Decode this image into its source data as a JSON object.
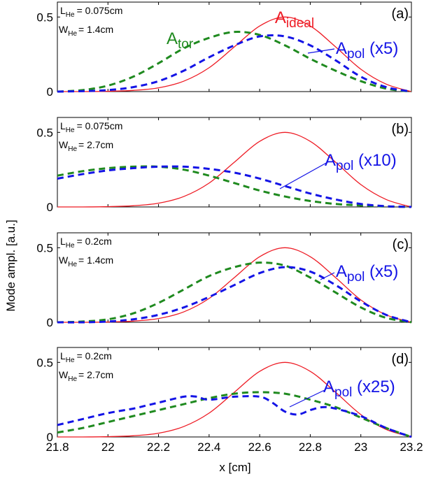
{
  "chart_data": {
    "type": "line",
    "xlabel": "x [cm]",
    "ylabel": "Mode ampl. [a.u.]",
    "xlim": [
      21.8,
      23.2
    ],
    "ylim": [
      0,
      0.6
    ],
    "x_ticks": [
      "21.8",
      "22",
      "22.2",
      "22.4",
      "22.6",
      "22.8",
      "23",
      "23.2"
    ],
    "y_ticks": [
      "0",
      "0.5"
    ],
    "colors": {
      "ideal": "#ee1c25",
      "tor": "#1f8a1f",
      "pol": "#1414e6"
    },
    "panels": [
      {
        "id": "a",
        "letter": "(a)",
        "params": {
          "L_main": "L",
          "L_sub": "He",
          "L_val": "= 0.075cm",
          "W_main": "W",
          "W_sub": "He",
          "W_val": "= 1.4cm"
        },
        "labels": {
          "ideal": {
            "main": "A",
            "sub": "ideal"
          },
          "tor": {
            "main": "A",
            "sub": "tor"
          },
          "pol": {
            "main": "A",
            "sub": "pol",
            "suffix": " (x5)"
          }
        },
        "series": [
          {
            "key": "ideal",
            "x": [
              21.8,
              21.9,
              22.0,
              22.1,
              22.2,
              22.3,
              22.4,
              22.5,
              22.6,
              22.7,
              22.8,
              22.9,
              23.0,
              23.1,
              23.2
            ],
            "y": [
              0.0,
              0.0,
              0.002,
              0.008,
              0.025,
              0.07,
              0.16,
              0.3,
              0.44,
              0.5,
              0.44,
              0.3,
              0.15,
              0.05,
              0.0
            ]
          },
          {
            "key": "tor",
            "x": [
              21.8,
              21.9,
              22.0,
              22.1,
              22.2,
              22.3,
              22.4,
              22.5,
              22.6,
              22.7,
              22.8,
              22.9,
              23.0,
              23.1,
              23.2
            ],
            "y": [
              0.0,
              0.01,
              0.04,
              0.1,
              0.19,
              0.29,
              0.36,
              0.4,
              0.38,
              0.31,
              0.22,
              0.14,
              0.07,
              0.02,
              0.0
            ]
          },
          {
            "key": "pol",
            "x": [
              21.8,
              21.9,
              22.0,
              22.1,
              22.2,
              22.3,
              22.4,
              22.5,
              22.6,
              22.7,
              22.8,
              22.9,
              23.0,
              23.1,
              23.2
            ],
            "y": [
              0.0,
              0.003,
              0.01,
              0.03,
              0.07,
              0.14,
              0.23,
              0.31,
              0.37,
              0.37,
              0.31,
              0.21,
              0.1,
              0.03,
              0.0
            ]
          }
        ]
      },
      {
        "id": "b",
        "letter": "(b)",
        "params": {
          "L_main": "L",
          "L_sub": "He",
          "L_val": "= 0.075cm",
          "W_main": "W",
          "W_sub": "He",
          "W_val": "= 2.7cm"
        },
        "labels": {
          "ideal": null,
          "tor": null,
          "pol": {
            "main": "A",
            "sub": "pol",
            "suffix": " (x10)"
          }
        },
        "series": [
          {
            "key": "ideal",
            "x": [
              21.8,
              21.9,
              22.0,
              22.1,
              22.2,
              22.3,
              22.4,
              22.5,
              22.6,
              22.7,
              22.8,
              22.9,
              23.0,
              23.1,
              23.2
            ],
            "y": [
              0.0,
              0.0,
              0.002,
              0.008,
              0.025,
              0.07,
              0.16,
              0.3,
              0.44,
              0.5,
              0.44,
              0.3,
              0.15,
              0.05,
              0.0
            ]
          },
          {
            "key": "tor",
            "x": [
              21.8,
              21.9,
              22.0,
              22.1,
              22.2,
              22.3,
              22.4,
              22.5,
              22.6,
              22.7,
              22.8,
              22.9,
              23.0,
              23.1,
              23.2
            ],
            "y": [
              0.21,
              0.24,
              0.26,
              0.27,
              0.27,
              0.25,
              0.21,
              0.16,
              0.11,
              0.07,
              0.04,
              0.02,
              0.01,
              0.003,
              0.0
            ]
          },
          {
            "key": "pol",
            "x": [
              21.8,
              21.9,
              22.0,
              22.1,
              22.2,
              22.3,
              22.4,
              22.5,
              22.6,
              22.7,
              22.8,
              22.9,
              23.0,
              23.1,
              23.2
            ],
            "y": [
              0.19,
              0.22,
              0.245,
              0.26,
              0.27,
              0.27,
              0.255,
              0.23,
              0.19,
              0.14,
              0.09,
              0.05,
              0.02,
              0.005,
              0.0
            ]
          }
        ]
      },
      {
        "id": "c",
        "letter": "(c)",
        "params": {
          "L_main": "L",
          "L_sub": "He",
          "L_val": "= 0.2cm",
          "W_main": "W",
          "W_sub": "He",
          "W_val": "= 1.4cm"
        },
        "labels": {
          "ideal": null,
          "tor": null,
          "pol": {
            "main": "A",
            "sub": "pol",
            "suffix": " (x5)"
          }
        },
        "series": [
          {
            "key": "ideal",
            "x": [
              21.8,
              21.9,
              22.0,
              22.1,
              22.2,
              22.3,
              22.4,
              22.5,
              22.6,
              22.7,
              22.8,
              22.9,
              23.0,
              23.1,
              23.2
            ],
            "y": [
              0.0,
              0.0,
              0.002,
              0.008,
              0.025,
              0.07,
              0.16,
              0.3,
              0.44,
              0.5,
              0.44,
              0.3,
              0.15,
              0.05,
              0.0
            ]
          },
          {
            "key": "tor",
            "x": [
              21.8,
              21.9,
              22.0,
              22.1,
              22.2,
              22.3,
              22.4,
              22.5,
              22.6,
              22.7,
              22.8,
              22.9,
              23.0,
              23.1,
              23.2
            ],
            "y": [
              0.0,
              0.005,
              0.02,
              0.06,
              0.13,
              0.22,
              0.31,
              0.37,
              0.4,
              0.38,
              0.3,
              0.2,
              0.1,
              0.03,
              0.0
            ]
          },
          {
            "key": "pol",
            "x": [
              21.8,
              21.9,
              22.0,
              22.1,
              22.2,
              22.3,
              22.4,
              22.5,
              22.6,
              22.7,
              22.8,
              22.9,
              23.0,
              23.1,
              23.2
            ],
            "y": [
              0.0,
              0.0,
              0.005,
              0.02,
              0.05,
              0.1,
              0.17,
              0.25,
              0.33,
              0.37,
              0.34,
              0.25,
              0.14,
              0.05,
              0.0
            ]
          }
        ]
      },
      {
        "id": "d",
        "letter": "(d)",
        "params": {
          "L_main": "L",
          "L_sub": "He",
          "L_val": "= 0.2cm",
          "W_main": "W",
          "W_sub": "He",
          "W_val": "= 2.7cm"
        },
        "labels": {
          "ideal": null,
          "tor": null,
          "pol": {
            "main": "A",
            "sub": "pol",
            "suffix": " (x25)"
          }
        },
        "series": [
          {
            "key": "ideal",
            "x": [
              21.8,
              21.9,
              22.0,
              22.1,
              22.2,
              22.3,
              22.4,
              22.5,
              22.6,
              22.7,
              22.8,
              22.9,
              23.0,
              23.1,
              23.2
            ],
            "y": [
              0.0,
              0.0,
              0.002,
              0.008,
              0.025,
              0.07,
              0.16,
              0.3,
              0.44,
              0.5,
              0.44,
              0.3,
              0.15,
              0.05,
              0.0
            ]
          },
          {
            "key": "tor",
            "x": [
              21.8,
              21.9,
              22.0,
              22.1,
              22.2,
              22.3,
              22.4,
              22.5,
              22.6,
              22.7,
              22.8,
              22.9,
              23.0,
              23.1,
              23.2
            ],
            "y": [
              0.03,
              0.06,
              0.1,
              0.14,
              0.18,
              0.22,
              0.26,
              0.29,
              0.3,
              0.29,
              0.25,
              0.2,
              0.13,
              0.06,
              0.0
            ]
          },
          {
            "key": "pol",
            "x": [
              21.8,
              21.9,
              22.0,
              22.1,
              22.15,
              22.2,
              22.3,
              22.35,
              22.4,
              22.5,
              22.6,
              22.65,
              22.7,
              22.75,
              22.8,
              22.85,
              22.9,
              23.0,
              23.1,
              23.2
            ],
            "y": [
              0.08,
              0.12,
              0.16,
              0.19,
              0.21,
              0.23,
              0.27,
              0.27,
              0.25,
              0.27,
              0.27,
              0.23,
              0.17,
              0.15,
              0.18,
              0.2,
              0.19,
              0.14,
              0.06,
              0.0
            ]
          }
        ]
      }
    ]
  }
}
